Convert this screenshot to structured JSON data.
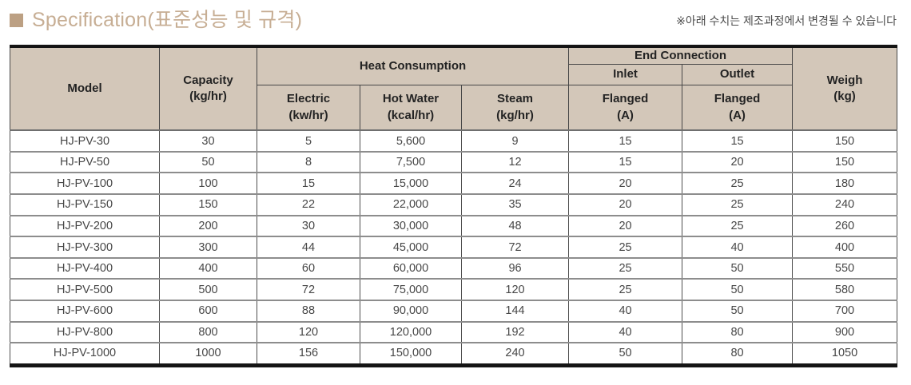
{
  "page": {
    "title": "Specification(표준성능 및 규격)",
    "note": "※아래 수치는 제조과정에서 변경될 수 있습니다"
  },
  "colors": {
    "accent_square": "#bca083",
    "title_text": "#c7ae94",
    "header_bg": "#d3c7b9",
    "header_text": "#232323",
    "body_text": "#474747",
    "row_line": "#8d8d8d",
    "outer_border": "#141414"
  },
  "table": {
    "columns": {
      "model": "Model",
      "capacity": {
        "label": "Capacity",
        "unit": "(kg/hr)"
      },
      "heat_consumption": "Heat Consumption",
      "electric": {
        "label": "Electric",
        "unit": "(kw/hr)"
      },
      "hot_water": {
        "label": "Hot Water",
        "unit": "(kcal/hr)"
      },
      "steam": {
        "label": "Steam",
        "unit": "(kg/hr)"
      },
      "end_connection": "End Connection",
      "inlet": "Inlet",
      "outlet": "Outlet",
      "inlet_type": {
        "label": "Flanged",
        "unit": "(A)"
      },
      "outlet_type": {
        "label": "Flanged",
        "unit": "(A)"
      },
      "weight": {
        "label": "Weigh",
        "unit": "(kg)"
      }
    },
    "rows": [
      {
        "model": "HJ-PV-30",
        "capacity": "30",
        "electric": "5",
        "hot_water": "5,600",
        "steam": "9",
        "inlet": "15",
        "outlet": "15",
        "weight": "150"
      },
      {
        "model": "HJ-PV-50",
        "capacity": "50",
        "electric": "8",
        "hot_water": "7,500",
        "steam": "12",
        "inlet": "15",
        "outlet": "20",
        "weight": "150"
      },
      {
        "model": "HJ-PV-100",
        "capacity": "100",
        "electric": "15",
        "hot_water": "15,000",
        "steam": "24",
        "inlet": "20",
        "outlet": "25",
        "weight": "180"
      },
      {
        "model": "HJ-PV-150",
        "capacity": "150",
        "electric": "22",
        "hot_water": "22,000",
        "steam": "35",
        "inlet": "20",
        "outlet": "25",
        "weight": "240"
      },
      {
        "model": "HJ-PV-200",
        "capacity": "200",
        "electric": "30",
        "hot_water": "30,000",
        "steam": "48",
        "inlet": "20",
        "outlet": "25",
        "weight": "260"
      },
      {
        "model": "HJ-PV-300",
        "capacity": "300",
        "electric": "44",
        "hot_water": "45,000",
        "steam": "72",
        "inlet": "25",
        "outlet": "40",
        "weight": "400"
      },
      {
        "model": "HJ-PV-400",
        "capacity": "400",
        "electric": "60",
        "hot_water": "60,000",
        "steam": "96",
        "inlet": "25",
        "outlet": "50",
        "weight": "550"
      },
      {
        "model": "HJ-PV-500",
        "capacity": "500",
        "electric": "72",
        "hot_water": "75,000",
        "steam": "120",
        "inlet": "25",
        "outlet": "50",
        "weight": "580"
      },
      {
        "model": "HJ-PV-600",
        "capacity": "600",
        "electric": "88",
        "hot_water": "90,000",
        "steam": "144",
        "inlet": "40",
        "outlet": "50",
        "weight": "700"
      },
      {
        "model": "HJ-PV-800",
        "capacity": "800",
        "electric": "120",
        "hot_water": "120,000",
        "steam": "192",
        "inlet": "40",
        "outlet": "80",
        "weight": "900"
      },
      {
        "model": "HJ-PV-1000",
        "capacity": "1000",
        "electric": "156",
        "hot_water": "150,000",
        "steam": "240",
        "inlet": "50",
        "outlet": "80",
        "weight": "1050"
      }
    ]
  }
}
